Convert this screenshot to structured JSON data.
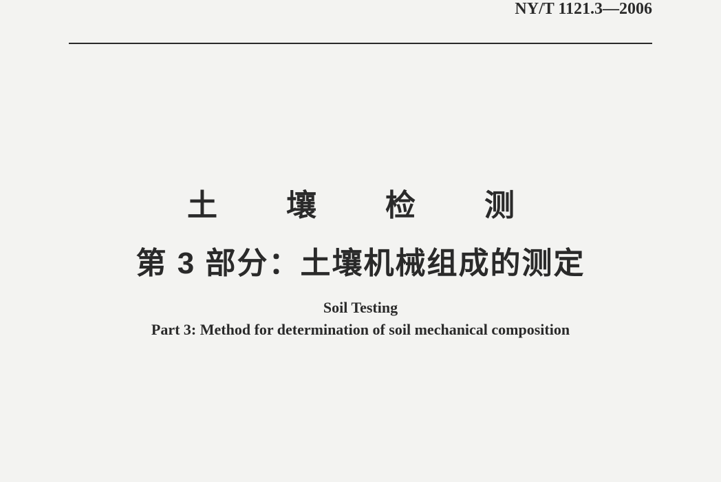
{
  "header": {
    "standard_code": "NY/T 1121.3—2006"
  },
  "title": {
    "chinese_line1": "土　壤　检　测",
    "chinese_line2": "第 3 部分：土壤机械组成的测定",
    "english_line1": "Soil Testing",
    "english_line2": "Part 3: Method for determination of soil mechanical composition"
  },
  "styling": {
    "background_color": "#f3f3f1",
    "text_color": "#2a2a2a",
    "divider_color": "#2a2a2a",
    "title_cn_fontsize": 44,
    "title_en_fontsize": 22,
    "header_code_fontsize": 24
  }
}
